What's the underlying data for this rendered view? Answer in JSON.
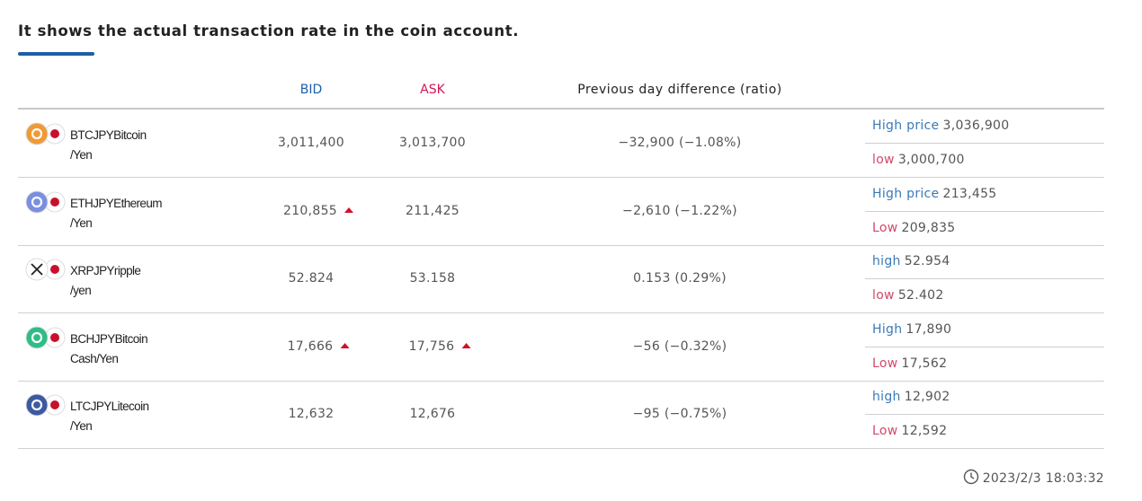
{
  "header": {
    "title": "It shows the actual transaction rate in the coin account."
  },
  "table": {
    "columns": [
      "BID",
      "ASK",
      "Previous day difference (ratio)"
    ],
    "rows": [
      {
        "name": "BTCJPYBitcoin",
        "name_sub": "/Yen",
        "icon_color": "#f09a35",
        "bid": "3,011,400",
        "ask": "3,013,700",
        "diff": "−32,900 (−1.08%)",
        "bid_up": false,
        "ask_up": false,
        "high_label": "High price",
        "high": "3,036,900",
        "low_label": "low",
        "low": "3,000,700"
      },
      {
        "name": "ETHJPYEthereum",
        "name_sub": "/Yen",
        "icon_color": "#7a8fe0",
        "bid": "210,855",
        "ask": "211,425",
        "diff": "−2,610 (−1.22%)",
        "bid_up": true,
        "ask_up": false,
        "high_label": "High price",
        "high": "213,455",
        "low_label": "Low",
        "low": "209,835"
      },
      {
        "name": "XRPJPYripple",
        "name_sub": "/yen",
        "icon_color": "#ffffff",
        "bid": "52.824",
        "ask": "53.158",
        "diff": "0.153 (0.29%)",
        "bid_up": false,
        "ask_up": false,
        "high_label": "high",
        "high": "52.954",
        "low_label": "low",
        "low": "52.402"
      },
      {
        "name": "BCHJPYBitcoin",
        "name_sub": "Cash/Yen",
        "icon_color": "#2ebd85",
        "bid": "17,666",
        "ask": "17,756",
        "diff": "−56 (−0.32%)",
        "bid_up": true,
        "ask_up": true,
        "high_label": "High",
        "high": "17,890",
        "low_label": "Low",
        "low": "17,562"
      },
      {
        "name": "LTCJPYLitecoin",
        "name_sub": "/Yen",
        "icon_color": "#3c5aa0",
        "bid": "12,632",
        "ask": "12,676",
        "diff": "−95 (−0.75%)",
        "bid_up": false,
        "ask_up": false,
        "high_label": "high",
        "high": "12,902",
        "low_label": "Low",
        "low": "12,592"
      }
    ]
  },
  "footer": {
    "timestamp": "2023/2/3 18:03:32"
  }
}
